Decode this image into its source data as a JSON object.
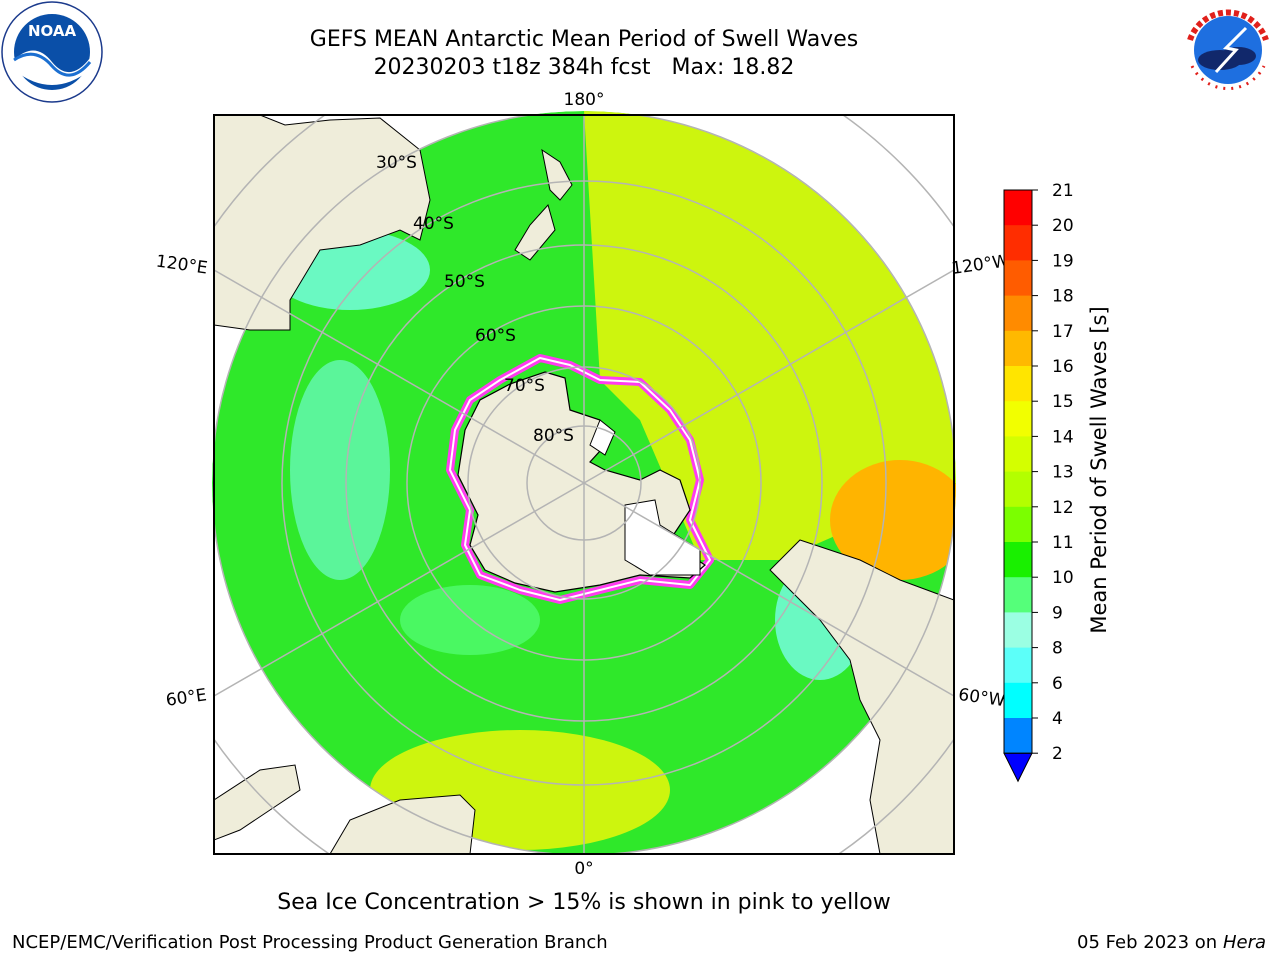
{
  "title": {
    "line1": "GEFS MEAN Antarctic Mean Period of Swell Waves",
    "line2_run": "20230203 t18z 384h fcst",
    "line2_max": "Max: 18.82"
  },
  "logos": {
    "left": {
      "icon": "noaa-logo-icon",
      "text": "NOAA",
      "ring_text": "NATIONAL OCEANIC AND ATMOSPHERIC ADMINISTRATION · U.S. DEPARTMENT OF COMMERCE"
    },
    "right": {
      "icon": "nws-logo-icon",
      "ring_text": "NATIONAL WEATHER SERVICE"
    }
  },
  "map": {
    "projection": "south-polar-stereographic",
    "lat_labels": [
      "30°S",
      "40°S",
      "50°S",
      "60°S",
      "70°S",
      "80°S"
    ],
    "lon_labels": {
      "top": "180°",
      "bottom": "0°",
      "left_upper": "120°E",
      "left_lower": "60°E",
      "right_upper": "120°W",
      "right_lower": "60°W"
    },
    "colors": {
      "land": "#efedda",
      "ocean_main": "#2fe82a",
      "ocean_yellow": "#cdf50e",
      "ocean_cyan": "#7ffff5",
      "sea_ice": "#ff3cf0",
      "grid": "#b4b4b4"
    }
  },
  "colorbar": {
    "label": "Mean Period of Swell Waves [s]",
    "ticks": [
      "21",
      "20",
      "19",
      "18",
      "17",
      "16",
      "15",
      "14",
      "13",
      "12",
      "11",
      "10",
      "9",
      "8",
      "6",
      "4",
      "2"
    ],
    "colors": [
      "#ff0000",
      "#ff2d00",
      "#ff5c00",
      "#ff8b00",
      "#ffb900",
      "#ffe500",
      "#f2ff00",
      "#d4ff00",
      "#b3ff00",
      "#7bff00",
      "#19f000",
      "#55ff7a",
      "#9bffe3",
      "#5cfff9",
      "#00ffff",
      "#0085ff"
    ],
    "extend_color": "#0000ff"
  },
  "note": "Sea Ice Concentration > 15% is shown in pink to yellow",
  "footer": {
    "left": "NCEP/EMC/Verification Post Processing Product Generation Branch",
    "right_date": "05 Feb 2023 on",
    "right_host": "Hera"
  }
}
